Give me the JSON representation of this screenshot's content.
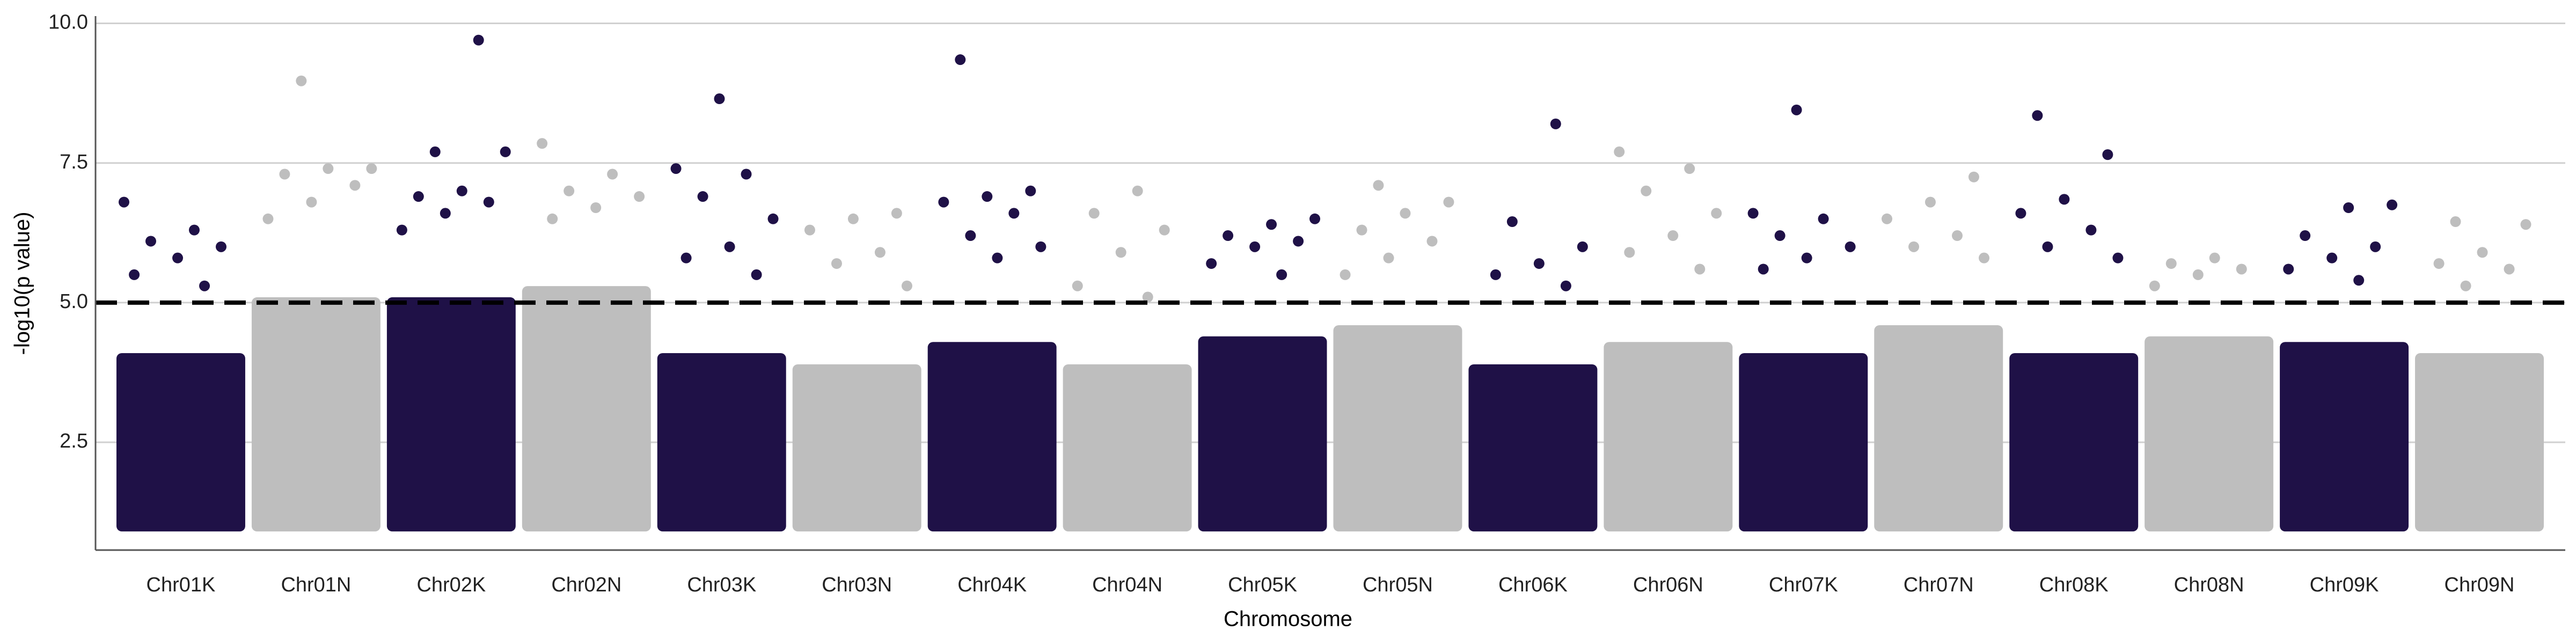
{
  "chart_data": {
    "type": "manhattan",
    "x_label": "Chromosome",
    "y_label": "-log10(p value)",
    "ylim": [
      0.57,
      10.13
    ],
    "yticks": [
      2.5,
      {
        "value": 5,
        "label": "5.0"
      },
      7.5,
      {
        "value": 10,
        "label": "10.0"
      }
    ],
    "threshold": 5,
    "grid": true,
    "series": [
      {
        "name": "Chr01K",
        "color": "#1f1147",
        "range": [
          1.0,
          4.0
        ],
        "values": [
          6.8,
          6.3,
          6.1,
          6.0,
          5.8,
          5.5,
          5.3
        ]
      },
      {
        "name": "Chr01N",
        "color": "#bebebe",
        "range": [
          1.0,
          5.0
        ],
        "values": [
          8.97,
          7.4,
          7.4,
          7.3,
          7.1,
          6.8,
          6.5
        ]
      },
      {
        "name": "Chr02K",
        "color": "#1f1147",
        "range": [
          1.0,
          5.0
        ],
        "values": [
          9.7,
          7.7,
          7.7,
          7.0,
          6.9,
          6.8,
          6.6,
          6.3
        ]
      },
      {
        "name": "Chr02N",
        "color": "#bebebe",
        "range": [
          1.0,
          5.2
        ],
        "values": [
          7.85,
          7.3,
          7.0,
          6.9,
          6.7,
          6.5
        ]
      },
      {
        "name": "Chr03K",
        "color": "#1f1147",
        "range": [
          1.0,
          4.0
        ],
        "values": [
          8.65,
          7.4,
          7.3,
          6.9,
          6.5,
          6.0,
          5.8,
          5.5
        ]
      },
      {
        "name": "Chr03N",
        "color": "#bebebe",
        "range": [
          1.0,
          3.8
        ],
        "values": [
          6.6,
          6.5,
          6.3,
          5.9,
          5.7,
          5.3
        ]
      },
      {
        "name": "Chr04K",
        "color": "#1f1147",
        "range": [
          1.0,
          4.2
        ],
        "values": [
          9.35,
          7.0,
          6.9,
          6.8,
          6.6,
          6.2,
          6.0,
          5.8
        ]
      },
      {
        "name": "Chr04N",
        "color": "#bebebe",
        "range": [
          1.0,
          3.8
        ],
        "values": [
          7.0,
          6.6,
          6.3,
          5.9,
          5.3,
          5.1
        ]
      },
      {
        "name": "Chr05K",
        "color": "#1f1147",
        "range": [
          1.0,
          4.3
        ],
        "values": [
          6.5,
          6.4,
          6.2,
          6.1,
          6.0,
          5.7,
          5.5
        ]
      },
      {
        "name": "Chr05N",
        "color": "#bebebe",
        "range": [
          1.0,
          4.5
        ],
        "values": [
          7.1,
          6.8,
          6.6,
          6.3,
          6.1,
          5.8,
          5.5
        ]
      },
      {
        "name": "Chr06K",
        "color": "#1f1147",
        "range": [
          1.0,
          3.8
        ],
        "values": [
          8.2,
          6.45,
          6.0,
          5.7,
          5.5,
          5.3
        ]
      },
      {
        "name": "Chr06N",
        "color": "#bebebe",
        "range": [
          1.0,
          4.2
        ],
        "values": [
          7.7,
          7.4,
          7.0,
          6.6,
          6.2,
          5.9,
          5.6
        ]
      },
      {
        "name": "Chr07K",
        "color": "#1f1147",
        "range": [
          1.0,
          4.0
        ],
        "values": [
          8.45,
          6.6,
          6.5,
          6.2,
          6.0,
          5.8,
          5.6
        ]
      },
      {
        "name": "Chr07N",
        "color": "#bebebe",
        "range": [
          1.0,
          4.5
        ],
        "values": [
          7.25,
          6.8,
          6.5,
          6.2,
          6.0,
          5.8
        ]
      },
      {
        "name": "Chr08K",
        "color": "#1f1147",
        "range": [
          1.0,
          4.0
        ],
        "values": [
          8.35,
          7.65,
          6.85,
          6.6,
          6.3,
          6.0,
          5.8
        ]
      },
      {
        "name": "Chr08N",
        "color": "#bebebe",
        "range": [
          1.0,
          4.3
        ],
        "values": [
          5.8,
          5.7,
          5.6,
          5.5,
          5.3
        ]
      },
      {
        "name": "Chr09K",
        "color": "#1f1147",
        "range": [
          1.0,
          4.2
        ],
        "values": [
          6.75,
          6.7,
          6.2,
          6.0,
          5.8,
          5.6,
          5.4
        ]
      },
      {
        "name": "Chr09N",
        "color": "#bebebe",
        "range": [
          1.0,
          4.0
        ],
        "values": [
          6.45,
          6.4,
          5.9,
          5.7,
          5.6,
          5.3
        ]
      }
    ]
  }
}
